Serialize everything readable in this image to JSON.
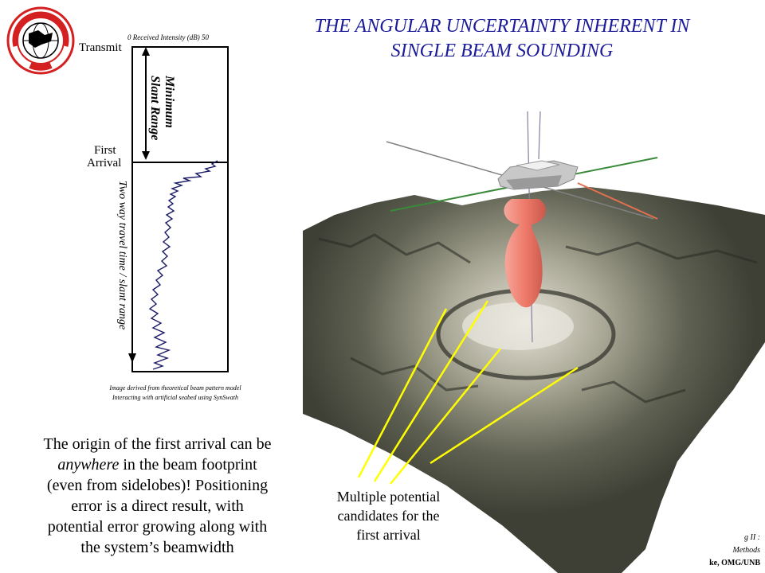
{
  "title": {
    "line1": "THE ANGULAR UNCERTAINTY INHERENT IN",
    "line2": "SINGLE BEAM SOUNDING"
  },
  "logo": {
    "text": "GEODESY AND GEOMATICS ENGINEERING",
    "bottom": "UNB"
  },
  "plot": {
    "axis_top": "0  Received Intensity (dB)  50",
    "transmit": "Transmit",
    "first_arrival_1": "First",
    "first_arrival_2": "Arrival",
    "min_range_1": "Minimum",
    "min_range_2": "Slant Range",
    "twoway": "Two way travel time / slant range",
    "note_1": "Image derived from theoretical beam pattern model",
    "note_2": "Interacting with artificial seabed using SynSwath"
  },
  "description": {
    "line1": "The origin of the first arrival can be",
    "line2_em": "anywhere",
    "line2_rest": " in the beam footprint",
    "line3": "(even from sidelobes)!  Positioning",
    "line4": "error is a direct result, with",
    "line5": "potential error growing along with",
    "line6": "the system’s beamwidth"
  },
  "candidates": {
    "line1": "Multiple potential",
    "line2": "candidates for the",
    "line3": "first arrival"
  },
  "corner": {
    "line1": "g II :",
    "line2": "Methods",
    "line3": "ke, OMG/UNB"
  },
  "colors": {
    "title": "#1b1b9a",
    "beam": "#f08070",
    "rays": "#ffff00",
    "seabed": "#5b5d50"
  }
}
